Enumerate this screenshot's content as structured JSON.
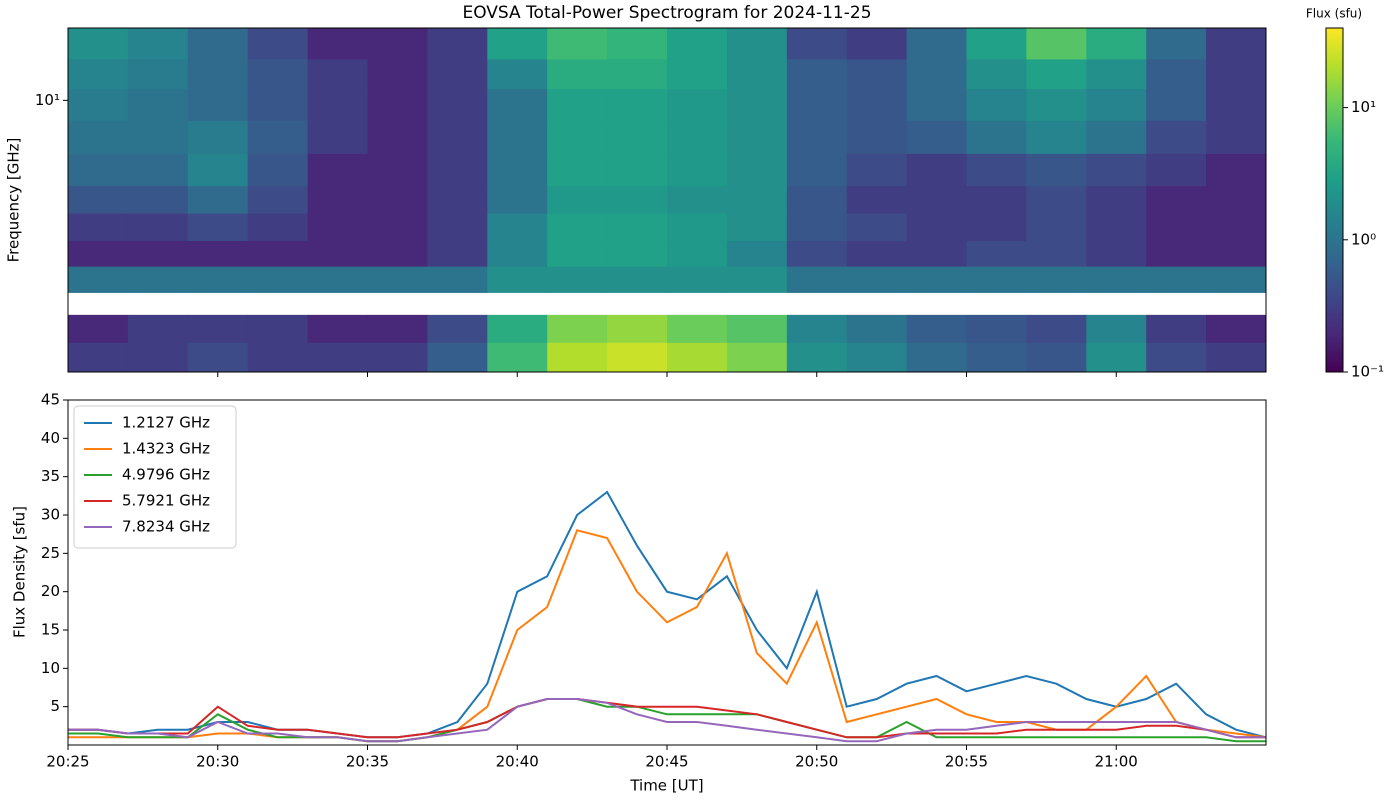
{
  "chart_data": [
    {
      "type": "heatmap",
      "title": "EOVSA Total-Power Spectrogram for 2024-11-25",
      "ylabel": "Frequency [GHz]",
      "yscale": "log",
      "ylim": [
        1.1,
        18
      ],
      "yticks": [
        {
          "value": 10,
          "label": "10¹"
        }
      ],
      "xlim": [
        "20:25",
        "21:05"
      ],
      "xticks": [
        "20:30",
        "20:35",
        "20:40",
        "20:45",
        "20:50",
        "20:55",
        "21:00"
      ],
      "colormap": "viridis",
      "zscale": "log",
      "zlim": [
        0.1,
        40
      ],
      "colorbar_label": "Flux (sfu)",
      "zticks": [
        {
          "value": 0.1,
          "label": "10⁻¹"
        },
        {
          "value": 1,
          "label": "10⁰"
        },
        {
          "value": 10,
          "label": "10¹"
        }
      ],
      "time_bins": [
        "20:25",
        "20:27",
        "20:29",
        "20:31",
        "20:33",
        "20:35",
        "20:37",
        "20:39",
        "20:41",
        "20:43",
        "20:45",
        "20:47",
        "20:49",
        "20:51",
        "20:53",
        "20:55",
        "20:57",
        "20:59",
        "21:01",
        "21:03",
        "21:05"
      ],
      "freq_bins": [
        1.1,
        1.4,
        1.75,
        2.1,
        2.6,
        3.2,
        4.0,
        5.0,
        6.5,
        8.5,
        11,
        14,
        18
      ],
      "z": [
        [
          0.3,
          0.3,
          0.4,
          0.3,
          0.3,
          0.3,
          0.6,
          6,
          20,
          25,
          18,
          12,
          2,
          1.5,
          0.8,
          0.6,
          0.5,
          2,
          0.4,
          0.3
        ],
        [
          0.2,
          0.3,
          0.3,
          0.3,
          0.2,
          0.2,
          0.4,
          4,
          12,
          15,
          10,
          8,
          1.5,
          1,
          0.6,
          0.5,
          0.4,
          1.5,
          0.3,
          0.2
        ],
        [
          null,
          null,
          null,
          null,
          null,
          null,
          null,
          null,
          null,
          null,
          null,
          null,
          null,
          null,
          null,
          null,
          null,
          null,
          null,
          null
        ],
        [
          1,
          1,
          1,
          1,
          1,
          1,
          1,
          2,
          2,
          2,
          2,
          2,
          1,
          1,
          1,
          1,
          1,
          1,
          1,
          1
        ],
        [
          0.2,
          0.2,
          0.2,
          0.2,
          0.2,
          0.2,
          0.3,
          1.5,
          3,
          3,
          2.5,
          1.5,
          0.4,
          0.3,
          0.3,
          0.4,
          0.4,
          0.3,
          0.2,
          0.2
        ],
        [
          0.3,
          0.3,
          0.4,
          0.3,
          0.2,
          0.2,
          0.3,
          1.5,
          3,
          3,
          2.5,
          2,
          0.5,
          0.4,
          0.3,
          0.3,
          0.4,
          0.3,
          0.2,
          0.2
        ],
        [
          0.5,
          0.5,
          0.8,
          0.4,
          0.2,
          0.2,
          0.3,
          1,
          2.5,
          2.5,
          2,
          2,
          0.5,
          0.3,
          0.3,
          0.3,
          0.4,
          0.3,
          0.2,
          0.2
        ],
        [
          0.8,
          0.8,
          1.5,
          0.5,
          0.2,
          0.2,
          0.3,
          1,
          3,
          3,
          2.5,
          2,
          0.6,
          0.4,
          0.3,
          0.4,
          0.5,
          0.4,
          0.3,
          0.2
        ],
        [
          1,
          1,
          1.2,
          0.6,
          0.3,
          0.2,
          0.3,
          1,
          3,
          3,
          2.5,
          2,
          0.6,
          0.5,
          0.6,
          1,
          1.5,
          1,
          0.4,
          0.3
        ],
        [
          1.2,
          1,
          0.8,
          0.5,
          0.3,
          0.2,
          0.3,
          1,
          3,
          3,
          2.5,
          2,
          0.6,
          0.5,
          0.8,
          1.5,
          2,
          1.5,
          0.6,
          0.3
        ],
        [
          1.5,
          1.2,
          0.8,
          0.5,
          0.3,
          0.2,
          0.3,
          1.5,
          4,
          4,
          3,
          2,
          0.6,
          0.5,
          0.8,
          2,
          3,
          2,
          0.6,
          0.3
        ],
        [
          2,
          1.5,
          0.8,
          0.4,
          0.2,
          0.2,
          0.3,
          3,
          6,
          5,
          3,
          2,
          0.4,
          0.3,
          0.8,
          3,
          8,
          4,
          0.8,
          0.3
        ]
      ]
    },
    {
      "type": "line",
      "xlabel": "Time [UT]",
      "ylabel": "Flux Density [sfu]",
      "legend": "upper left",
      "xlim": [
        "20:25",
        "21:05"
      ],
      "xticks": [
        "20:25",
        "20:30",
        "20:35",
        "20:40",
        "20:45",
        "20:50",
        "20:55",
        "21:00"
      ],
      "ylim": [
        0,
        45
      ],
      "yticks": [
        5,
        10,
        15,
        20,
        25,
        30,
        35,
        40,
        45
      ],
      "x": [
        "20:25",
        "20:26",
        "20:27",
        "20:28",
        "20:29",
        "20:30",
        "20:31",
        "20:32",
        "20:33",
        "20:34",
        "20:35",
        "20:36",
        "20:37",
        "20:38",
        "20:39",
        "20:40",
        "20:41",
        "20:42",
        "20:43",
        "20:44",
        "20:45",
        "20:46",
        "20:47",
        "20:48",
        "20:49",
        "20:50",
        "20:51",
        "20:52",
        "20:53",
        "20:54",
        "20:55",
        "20:56",
        "20:57",
        "20:58",
        "20:59",
        "21:00",
        "21:01",
        "21:02",
        "21:03",
        "21:04",
        "21:05"
      ],
      "series": [
        {
          "name": "1.2127 GHz",
          "color": "#1f77b4",
          "values": [
            2,
            2,
            1.5,
            2,
            2,
            3,
            3,
            2,
            2,
            1.5,
            1,
            1,
            1.5,
            3,
            8,
            20,
            22,
            30,
            33,
            26,
            20,
            19,
            22,
            15,
            10,
            20,
            5,
            6,
            8,
            9,
            7,
            8,
            9,
            8,
            6,
            5,
            6,
            8,
            4,
            2,
            1
          ]
        },
        {
          "name": "1.4323 GHz",
          "color": "#ff7f0e",
          "values": [
            1,
            1,
            1,
            1,
            1,
            1.5,
            1.5,
            1,
            1,
            1,
            0.5,
            0.5,
            1,
            2,
            5,
            15,
            18,
            28,
            27,
            20,
            16,
            18,
            25,
            12,
            8,
            16,
            3,
            4,
            5,
            6,
            4,
            3,
            3,
            2,
            2,
            5,
            9,
            3,
            2,
            1.5,
            1
          ]
        },
        {
          "name": "4.9796 GHz",
          "color": "#2ca02c",
          "values": [
            1.5,
            1.5,
            1,
            1,
            1,
            4,
            2,
            1,
            1,
            1,
            0.5,
            0.5,
            1,
            2,
            3,
            5,
            6,
            6,
            5,
            5,
            4,
            4,
            4,
            4,
            3,
            2,
            1,
            1,
            3,
            1,
            1,
            1,
            1,
            1,
            1,
            1,
            1,
            1,
            1,
            0.5,
            0.5
          ]
        },
        {
          "name": "5.7921 GHz",
          "color": "#d62728",
          "values": [
            2,
            2,
            1.5,
            1.5,
            1.5,
            5,
            2.5,
            2,
            2,
            1.5,
            1,
            1,
            1.5,
            2,
            3,
            5,
            6,
            6,
            5.5,
            5,
            5,
            5,
            4.5,
            4,
            3,
            2,
            1,
            1,
            1.5,
            1.5,
            1.5,
            1.5,
            2,
            2,
            2,
            2,
            2.5,
            2.5,
            2,
            1,
            1
          ]
        },
        {
          "name": "7.8234 GHz",
          "color": "#9467bd",
          "values": [
            2,
            2,
            1.5,
            1.5,
            1,
            3,
            1.5,
            1.5,
            1,
            1,
            0.5,
            0.5,
            1,
            1.5,
            2,
            5,
            6,
            6,
            5.5,
            4,
            3,
            3,
            2.5,
            2,
            1.5,
            1,
            0.5,
            0.5,
            1.5,
            2,
            2,
            2.5,
            3,
            3,
            3,
            3,
            3,
            3,
            2,
            1,
            1
          ]
        }
      ]
    }
  ]
}
